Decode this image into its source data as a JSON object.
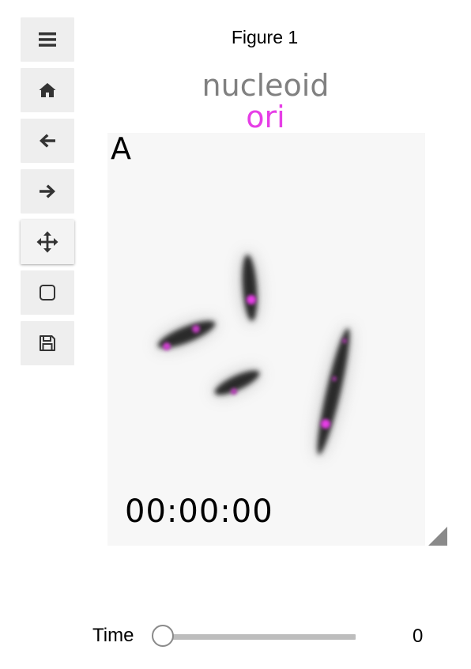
{
  "toolbar": {
    "buttons": [
      {
        "name": "menu",
        "icon": "hamburger-menu-icon"
      },
      {
        "name": "home",
        "icon": "home-icon"
      },
      {
        "name": "back",
        "icon": "arrow-left-icon"
      },
      {
        "name": "forward",
        "icon": "arrow-right-icon"
      },
      {
        "name": "pan",
        "icon": "move-arrows-icon",
        "active": true
      },
      {
        "name": "zoom-rect",
        "icon": "rounded-square-icon"
      },
      {
        "name": "save",
        "icon": "floppy-disk-icon"
      }
    ]
  },
  "figure": {
    "title": "Figure 1",
    "legend": {
      "nucleoid_label": "nucleoid",
      "ori_label": "ori",
      "nucleoid_color": "#808080",
      "ori_color": "#e63ee6"
    },
    "panel_label": "A",
    "timestamp": "00:00:00"
  },
  "slider": {
    "label": "Time",
    "value": "0",
    "fraction": 0
  },
  "colors": {
    "toolbar_button_bg": "#eeeeee",
    "image_bg": "#f7f7f7",
    "cell_dark": "#2a2a2a",
    "spot_magenta": "#e63ee6",
    "slider_track": "#bdbdbd"
  }
}
